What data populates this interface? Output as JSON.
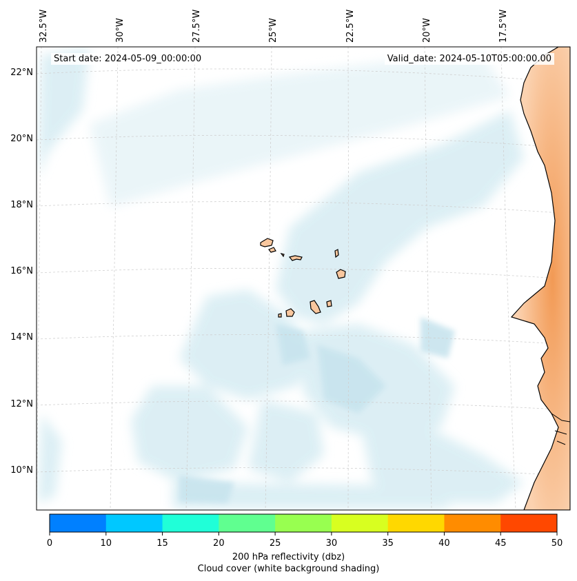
{
  "map": {
    "start_date": "Start date: 2024-05-09_00:00:00",
    "valid_date": "Valid_date: 2024-05-10T05:00:00.00",
    "longitude_labels": [
      "32.5°W",
      "30°W",
      "27.5°W",
      "25°W",
      "22.5°W",
      "20°W",
      "17.5°W"
    ],
    "latitude_labels": [
      "22°N",
      "20°N",
      "18°N",
      "16°N",
      "14°N",
      "12°N",
      "10°N"
    ],
    "colors": {
      "cloud": "#cfe8f0",
      "land_fill": "#f9c79e",
      "coast_orange": "#f5a060",
      "gridline": "#c8c8c8"
    }
  },
  "colorbar": {
    "ticks": [
      "0",
      "10",
      "15",
      "20",
      "25",
      "30",
      "35",
      "40",
      "45",
      "50"
    ],
    "colors": [
      "#0080ff",
      "#00c8ff",
      "#20ffd8",
      "#60ff90",
      "#98ff50",
      "#d8ff20",
      "#ffd800",
      "#ff8c00",
      "#ff4800"
    ],
    "label_line1": "200 hPa reflectivity (dbz)",
    "label_line2": "Cloud cover (white background shading)"
  }
}
